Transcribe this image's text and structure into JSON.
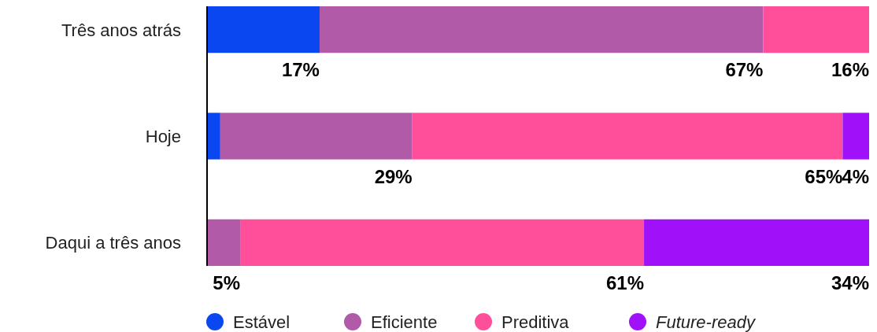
{
  "chart_data": {
    "type": "bar",
    "orientation": "horizontal",
    "stacked": true,
    "legend": "bottom",
    "categories": [
      "Três anos atrás",
      "Hoje",
      "Daqui a três anos"
    ],
    "series": [
      {
        "name": "Estável",
        "color": "#0a47f0",
        "values": [
          17,
          2,
          0
        ],
        "value_labels": [
          "17%",
          null,
          null
        ]
      },
      {
        "name": "Eficiente",
        "color": "#b05aa8",
        "values": [
          67,
          29,
          5
        ],
        "value_labels": [
          "67%",
          "29%",
          "5%"
        ]
      },
      {
        "name": "Preditiva",
        "color": "#ff4f9a",
        "values": [
          16,
          65,
          61
        ],
        "value_labels": [
          "16%",
          "65%",
          "61%"
        ]
      },
      {
        "name": "Future-ready",
        "color": "#a010f8",
        "values": [
          0,
          4,
          34
        ],
        "value_labels": [
          null,
          "4%",
          "34%"
        ]
      }
    ]
  }
}
